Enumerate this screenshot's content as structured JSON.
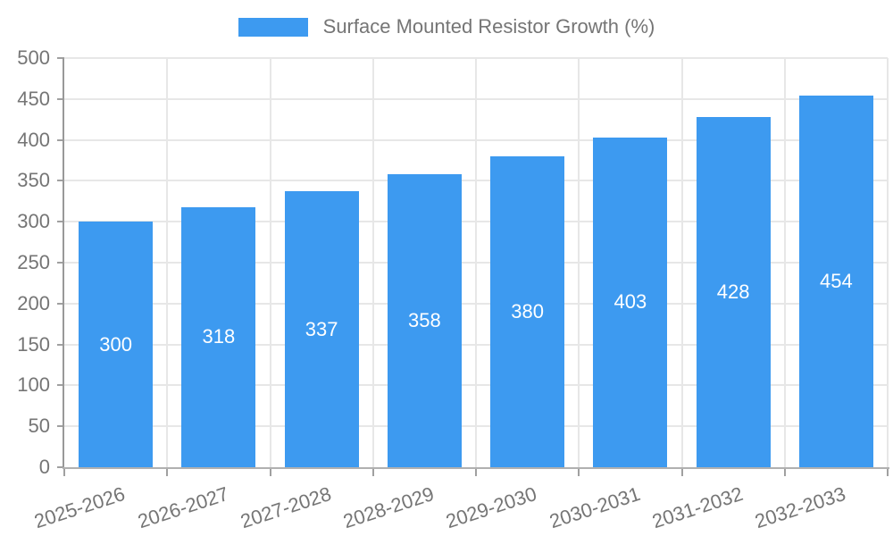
{
  "legend": {
    "label": "Surface Mounted Resistor Growth (%)",
    "swatch_color": "#3D9AF0"
  },
  "chart_data": {
    "type": "bar",
    "title": "Surface Mounted Resistor Growth (%)",
    "categories": [
      "2025-2026",
      "2026-2027",
      "2027-2028",
      "2028-2029",
      "2029-2030",
      "2030-2031",
      "2031-2032",
      "2032-2033"
    ],
    "values": [
      300,
      318,
      337,
      358,
      380,
      403,
      428,
      454
    ],
    "xlabel": "",
    "ylabel": "",
    "ylim": [
      0,
      500
    ],
    "ytick_step": 50,
    "grid": true,
    "legend_position": "top",
    "colors": {
      "bar": "#3D9AF0",
      "bar_label": "#FFFFFF",
      "axis_text": "#757575",
      "grid_line": "#E7E7E7",
      "axis_line_left": "#999999",
      "axis_line_bottom": "#B0B0B0",
      "tick": "#A0A0A0"
    }
  }
}
